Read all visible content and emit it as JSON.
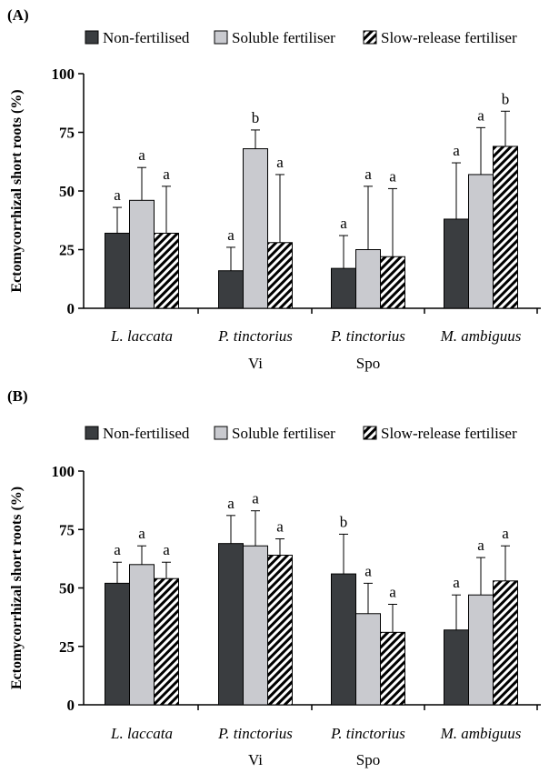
{
  "colors": {
    "non_fertilised": "#3a3d40",
    "soluble_fertiliser": "#c9cacf",
    "slow_release_pattern": "diagonal-stripes-black-white"
  },
  "chart_data": [
    {
      "type": "bar",
      "panel_label": "(A)",
      "ylabel": "Ectomycorrhizal short roots (%)",
      "ylim": [
        0,
        100
      ],
      "yticks": [
        "0",
        "25",
        "50",
        "75",
        "100"
      ],
      "grid": false,
      "legend_placement": "top",
      "categories": [
        {
          "name": "L. laccata",
          "suffix": ""
        },
        {
          "name": "P. tinctorius",
          "suffix": "Vi"
        },
        {
          "name": "P. tinctorius",
          "suffix": "Spo"
        },
        {
          "name": "M. ambiguus",
          "suffix": ""
        }
      ],
      "series": [
        {
          "name": "Non-fertilised",
          "values": [
            32,
            16,
            17,
            38
          ],
          "error": [
            11,
            10,
            14,
            24
          ],
          "letters": [
            "a",
            "a",
            "a",
            "a"
          ]
        },
        {
          "name": "Soluble fertiliser",
          "values": [
            46,
            68,
            25,
            57
          ],
          "error": [
            14,
            8,
            27,
            20
          ],
          "letters": [
            "a",
            "b",
            "a",
            "a"
          ]
        },
        {
          "name": "Slow-release fertiliser",
          "values": [
            32,
            28,
            22,
            69
          ],
          "error": [
            20,
            29,
            29,
            15
          ],
          "letters": [
            "a",
            "a",
            "a",
            "b"
          ]
        }
      ]
    },
    {
      "type": "bar",
      "panel_label": "(B)",
      "ylabel": "Ectomycorrhizal short roots (%)",
      "ylim": [
        0,
        100
      ],
      "yticks": [
        "0",
        "25",
        "50",
        "75",
        "100"
      ],
      "grid": false,
      "legend_placement": "top",
      "categories": [
        {
          "name": "L. laccata",
          "suffix": ""
        },
        {
          "name": "P. tinctorius",
          "suffix": "Vi"
        },
        {
          "name": "P. tinctorius",
          "suffix": "Spo"
        },
        {
          "name": "M. ambiguus",
          "suffix": ""
        }
      ],
      "series": [
        {
          "name": "Non-fertilised",
          "values": [
            52,
            69,
            56,
            32
          ],
          "error": [
            9,
            12,
            17,
            15
          ],
          "letters": [
            "a",
            "a",
            "b",
            "a"
          ]
        },
        {
          "name": "Soluble fertiliser",
          "values": [
            60,
            68,
            39,
            47
          ],
          "error": [
            8,
            15,
            13,
            16
          ],
          "letters": [
            "a",
            "a",
            "a",
            "a"
          ]
        },
        {
          "name": "Slow-release fertiliser",
          "values": [
            54,
            64,
            31,
            53
          ],
          "error": [
            7,
            7,
            12,
            15
          ],
          "letters": [
            "a",
            "a",
            "a",
            "a"
          ]
        }
      ]
    }
  ]
}
